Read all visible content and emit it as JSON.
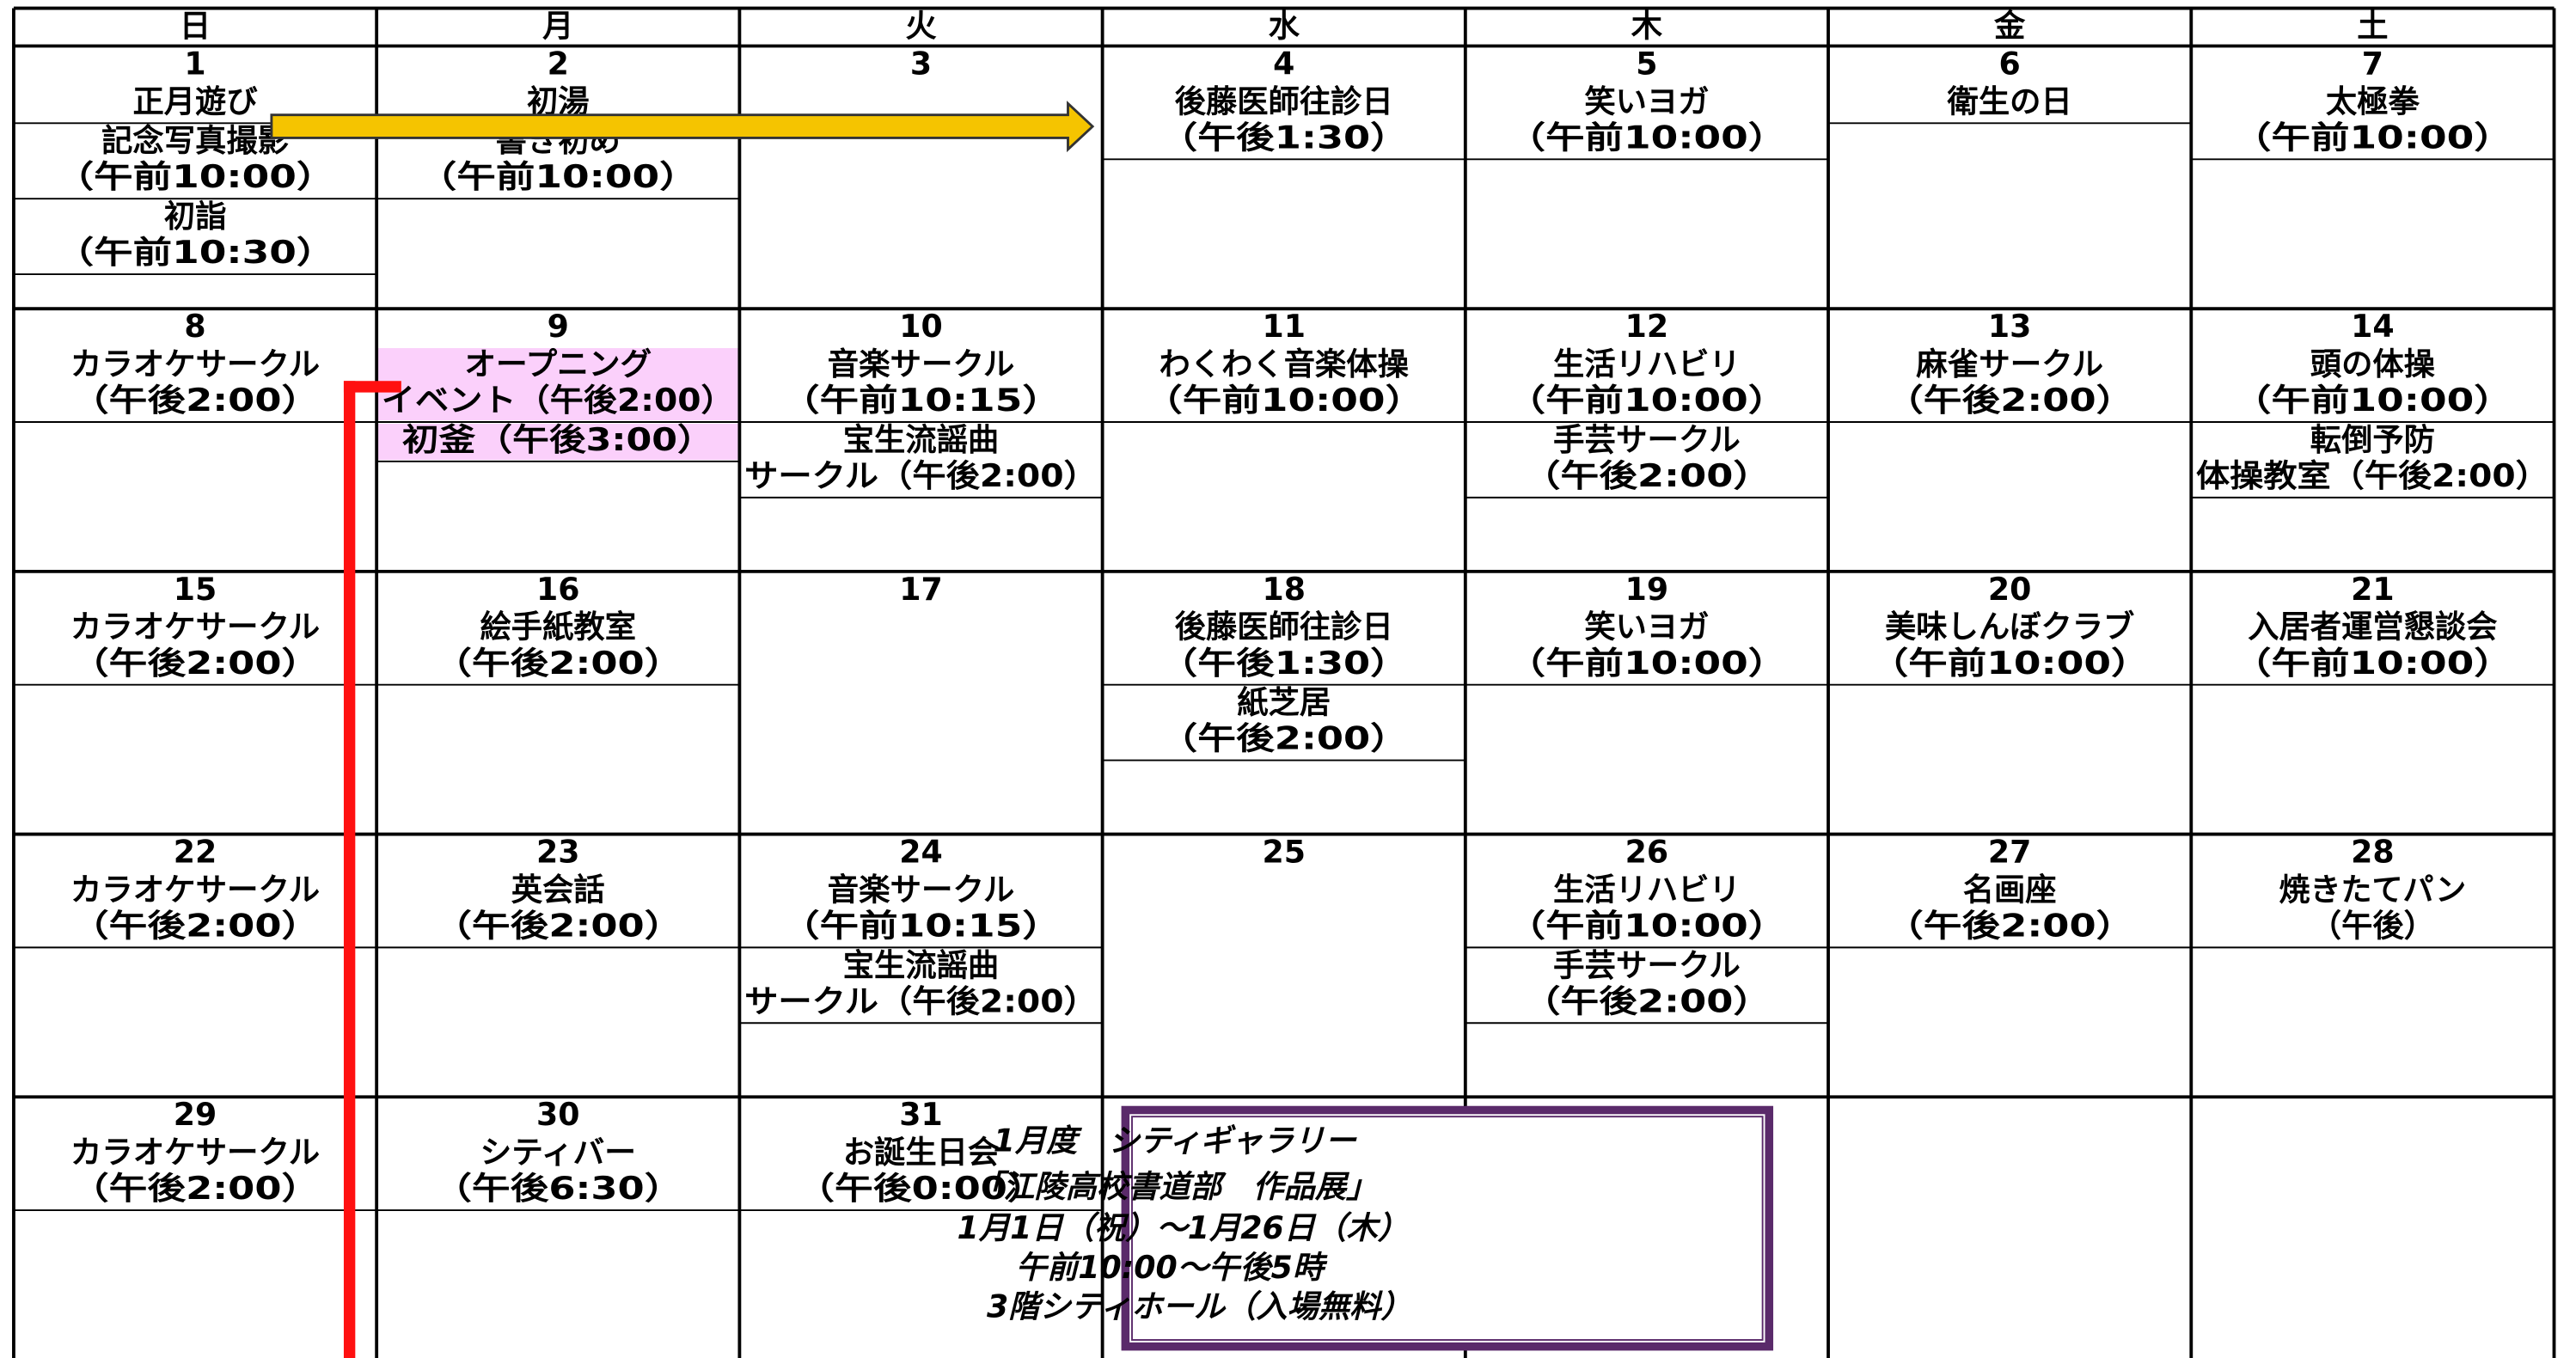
{
  "weekdays": [
    "日",
    "月",
    "火",
    "水",
    "木",
    "金",
    "土"
  ],
  "weeks": [
    [
      {
        "day": "1",
        "color": "#ff0000",
        "events": [
          [
            "正月遊び"
          ],
          [
            "記念写真撮影",
            "（午前10:00）"
          ],
          [
            "初詣",
            "（午前10:30）"
          ]
        ]
      },
      {
        "day": "2",
        "color": "#ff0000",
        "events": [
          [
            "初湯"
          ],
          [
            "書き初め",
            "（午前10:00）"
          ]
        ]
      },
      {
        "day": "3",
        "events": []
      },
      {
        "day": "4",
        "events": [
          [
            "後藤医師往診日",
            "（午後1:30）"
          ]
        ]
      },
      {
        "day": "5",
        "events": [
          [
            "笑いヨガ",
            "（午前10:00）"
          ]
        ]
      },
      {
        "day": "6",
        "events": [
          [
            "衛生の日"
          ]
        ]
      },
      {
        "day": "7",
        "events": [
          [
            "太極拳",
            "（午前10:00）"
          ]
        ]
      }
    ],
    [
      {
        "day": "8",
        "events": [
          [
            "カラオケサークル",
            "（午後2:00）"
          ]
        ]
      },
      {
        "day": "9",
        "color": "#ff0000",
        "background": "#fbd0fb",
        "events": [
          [
            "オープニング",
            "イベント（午後2:00）"
          ],
          [
            "初釜（午後3:00）"
          ]
        ]
      },
      {
        "day": "10",
        "events": [
          [
            "音楽サークル",
            "（午前10:15）"
          ],
          [
            "宝生流謡曲",
            "サークル（午後2:00）"
          ]
        ]
      },
      {
        "day": "11",
        "events": [
          [
            "わくわく音楽体操",
            "（午前10:00）"
          ]
        ]
      },
      {
        "day": "12",
        "events": [
          [
            "生活リハビリ",
            "（午前10:00）"
          ],
          [
            "手芸サークル",
            "（午後2:00）"
          ]
        ]
      },
      {
        "day": "13",
        "events": [
          [
            "麻雀サークル",
            "（午後2:00）"
          ]
        ]
      },
      {
        "day": "14",
        "events": [
          [
            "頭の体操",
            "（午前10:00）"
          ],
          [
            "転倒予防",
            "体操教室（午後2:00）"
          ]
        ]
      }
    ],
    [
      {
        "day": "15",
        "events": [
          [
            "カラオケサークル",
            "（午後2:00）"
          ]
        ]
      },
      {
        "day": "16",
        "events": [
          [
            "絵手紙教室",
            "（午後2:00）"
          ]
        ]
      },
      {
        "day": "17",
        "events": []
      },
      {
        "day": "18",
        "events": [
          [
            "後藤医師往診日",
            "（午後1:30）"
          ],
          [
            "紙芝居",
            "（午後2:00）"
          ]
        ]
      },
      {
        "day": "19",
        "events": [
          [
            "笑いヨガ",
            "（午前10:00）"
          ]
        ]
      },
      {
        "day": "20",
        "events": [
          [
            "美味しんぼクラブ",
            "（午前10:00）"
          ]
        ]
      },
      {
        "day": "21",
        "events": [
          [
            "入居者運営懇談会",
            "（午前10:00）"
          ]
        ]
      }
    ],
    [
      {
        "day": "22",
        "events": [
          [
            "カラオケサークル",
            "（午後2:00）"
          ]
        ]
      },
      {
        "day": "23",
        "events": [
          [
            "英会話",
            "（午後2:00）"
          ]
        ]
      },
      {
        "day": "24",
        "events": [
          [
            "音楽サークル",
            "（午前10:15）"
          ],
          [
            "宝生流謡曲",
            "サークル（午後2:00）"
          ]
        ]
      },
      {
        "day": "25",
        "events": []
      },
      {
        "day": "26",
        "events": [
          [
            "生活リハビリ",
            "（午前10:00）"
          ],
          [
            "手芸サークル",
            "（午後2:00）"
          ]
        ]
      },
      {
        "day": "27",
        "events": [
          [
            "名画座",
            "（午後2:00）"
          ]
        ]
      },
      {
        "day": "28",
        "events": [
          [
            "焼きたてパン",
            "（午後）"
          ]
        ]
      }
    ],
    [
      {
        "day": "29",
        "events": [
          [
            "カラオケサークル",
            "（午後2:00）"
          ]
        ]
      },
      {
        "day": "30",
        "events": [
          [
            "シティバー",
            "（午後6:30）"
          ]
        ]
      },
      {
        "day": "31",
        "events": [
          [
            "お誕生日会",
            "（午後0:00）"
          ]
        ]
      }
    ]
  ],
  "gallery": [
    "1月度　シティギャラリー",
    "「江陵高校書道部　作品展」",
    "1月1日（祝）～1月26日（木）",
    "午前10:00～午後5時",
    "3階シティホール（入場無料）"
  ]
}
